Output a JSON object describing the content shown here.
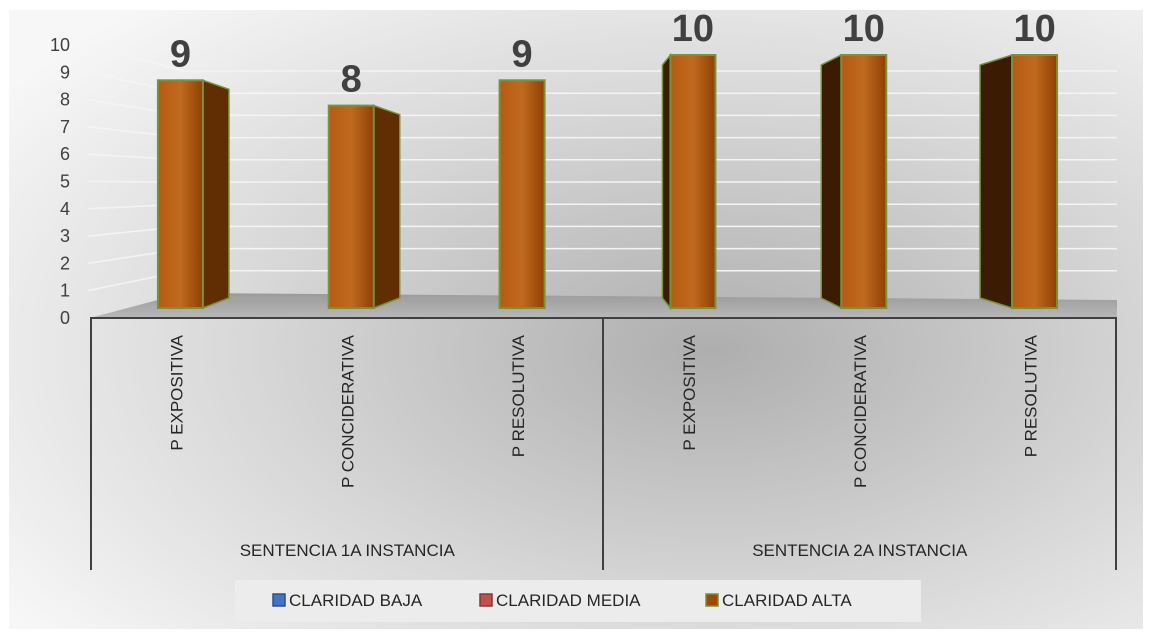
{
  "chart_data": {
    "type": "bar",
    "categories": [
      "P EXPOSITIVA",
      "P CONCIDERATIVA",
      "P RESOLUTIVA",
      "P EXPOSITIVA",
      "P CONCIDERATIVA",
      "P RESOLUTIVA"
    ],
    "groups": [
      {
        "label": "SENTENCIA 1A INSTANCIA",
        "categories": 3
      },
      {
        "label": "SENTENCIA 2A INSTANCIA",
        "categories": 3
      }
    ],
    "series": [
      {
        "name": "CLARIDAD BAJA",
        "values": [
          0,
          0,
          0,
          0,
          0,
          0
        ],
        "color": "#4472c4"
      },
      {
        "name": "CLARIDAD MEDIA",
        "values": [
          0,
          0,
          0,
          0,
          0,
          0
        ],
        "color": "#c0504d"
      },
      {
        "name": "CLARIDAD ALTA",
        "values": [
          9,
          8,
          9,
          10,
          10,
          10
        ],
        "color": "#9c4a06"
      }
    ],
    "data_labels": [
      "9",
      "8",
      "9",
      "10",
      "10",
      "10"
    ],
    "y_ticks": [
      "0",
      "1",
      "2",
      "3",
      "4",
      "5",
      "6",
      "7",
      "8",
      "9",
      "10"
    ],
    "ylim": [
      0,
      10
    ],
    "grid": true,
    "legend": "bottom",
    "three_d": true
  }
}
